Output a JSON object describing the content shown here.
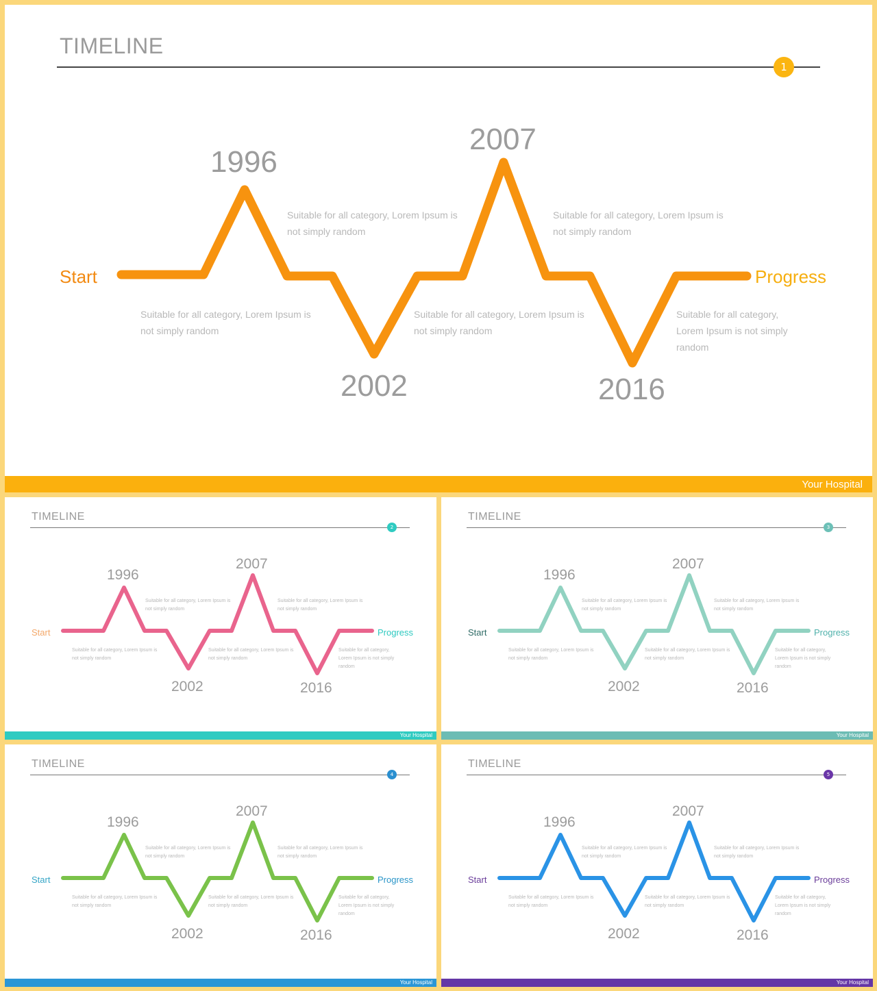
{
  "slides": [
    {
      "id": "s1",
      "title": "TIMELINE",
      "badge": "1",
      "start_label": "Start",
      "end_label": "Progress",
      "footer": "Your Hospital",
      "colors": {
        "line": "#f7930f",
        "start": "#f28a12",
        "end": "#f6ae0f",
        "badge": "#fbb511",
        "footer": "#fbb00d"
      },
      "milestones": [
        {
          "year": "1996",
          "text": "Suitable for all category, Lorem Ipsum is not simply random"
        },
        {
          "year": "2002",
          "text": "Suitable for all category, Lorem Ipsum is not simply random"
        },
        {
          "year": "2007",
          "text": "Suitable for all category, Lorem Ipsum is not simply random"
        },
        {
          "year": "2016",
          "text": "Suitable for all category, Lorem Ipsum is not simply random"
        }
      ],
      "first_text": "Suitable for all category, Lorem Ipsum is not simply random"
    },
    {
      "id": "s2",
      "title": "TIMELINE",
      "badge": "2",
      "start_label": "Start",
      "end_label": "Progress",
      "footer": "Your Hospital",
      "colors": {
        "line": "#e9648d",
        "start": "#f3a86a",
        "end": "#2ec9c0",
        "badge": "#2fcbc1",
        "footer": "#2fcbc1"
      },
      "milestones": [
        {
          "year": "1996",
          "text": "Suitable for all category, Lorem Ipsum is not simply random"
        },
        {
          "year": "2002",
          "text": "Suitable for all category, Lorem Ipsum is not simply random"
        },
        {
          "year": "2007",
          "text": "Suitable for all category, Lorem Ipsum is not simply random"
        },
        {
          "year": "2016",
          "text": "Suitable for all category, Lorem Ipsum is not simply random"
        }
      ],
      "first_text": "Suitable for all category, Lorem Ipsum is not simply random"
    },
    {
      "id": "s3",
      "title": "TIMELINE",
      "badge": "3",
      "start_label": "Start",
      "end_label": "Progress",
      "footer": "Your Hospital",
      "colors": {
        "line": "#91d2c1",
        "start": "#2f6b66",
        "end": "#4fb1ab",
        "badge": "#6cc0b7",
        "footer": "#6cbcb4"
      },
      "milestones": [
        {
          "year": "1996",
          "text": "Suitable for all category, Lorem Ipsum is not simply random"
        },
        {
          "year": "2002",
          "text": "Suitable for all category, Lorem Ipsum is not simply random"
        },
        {
          "year": "2007",
          "text": "Suitable for all category, Lorem Ipsum is not simply random"
        },
        {
          "year": "2016",
          "text": "Suitable for all category, Lorem Ipsum is not simply random"
        }
      ],
      "first_text": "Suitable for all category, Lorem Ipsum is not simply random"
    },
    {
      "id": "s4",
      "title": "TIMELINE",
      "badge": "4",
      "start_label": "Start",
      "end_label": "Progress",
      "footer": "Your Hospital",
      "colors": {
        "line": "#7ac24a",
        "start": "#35a5c6",
        "end": "#2a95c8",
        "badge": "#2a8fd0",
        "footer": "#2b96d6"
      },
      "milestones": [
        {
          "year": "1996",
          "text": "Suitable for all category, Lorem Ipsum is not simply random"
        },
        {
          "year": "2002",
          "text": "Suitable for all category, Lorem Ipsum is not simply random"
        },
        {
          "year": "2007",
          "text": "Suitable for all category, Lorem Ipsum is not simply random"
        },
        {
          "year": "2016",
          "text": "Suitable for all category, Lorem Ipsum is not simply random"
        }
      ],
      "first_text": "Suitable for all category, Lorem Ipsum is not simply random"
    },
    {
      "id": "s5",
      "title": "TIMELINE",
      "badge": "5",
      "start_label": "Start",
      "end_label": "Progress",
      "footer": "Your Hospital",
      "colors": {
        "line": "#2a93e6",
        "start": "#6a3d9a",
        "end": "#6a3d9a",
        "badge": "#6a36a8",
        "footer": "#6436a6"
      },
      "milestones": [
        {
          "year": "1996",
          "text": "Suitable for all category, Lorem Ipsum is not simply random"
        },
        {
          "year": "2002",
          "text": "Suitable for all category, Lorem Ipsum is not simply random"
        },
        {
          "year": "2007",
          "text": "Suitable for all category, Lorem Ipsum is not simply random"
        },
        {
          "year": "2016",
          "text": "Suitable for all category, Lorem Ipsum is not simply random"
        }
      ],
      "first_text": "Suitable for all category, Lorem Ipsum is not simply random"
    }
  ]
}
